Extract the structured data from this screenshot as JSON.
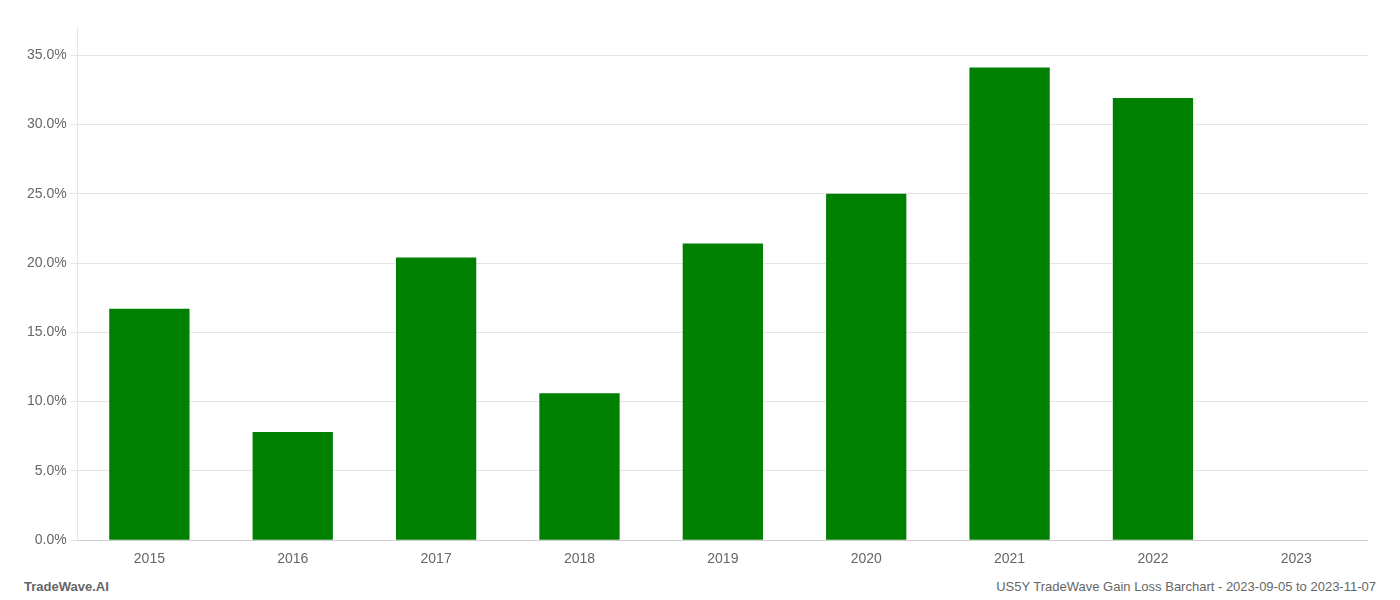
{
  "chart_data": {
    "type": "bar",
    "categories": [
      "2015",
      "2016",
      "2017",
      "2018",
      "2019",
      "2020",
      "2021",
      "2022",
      "2023"
    ],
    "values": [
      0.167,
      0.078,
      0.204,
      0.106,
      0.214,
      0.25,
      0.341,
      0.319,
      null
    ],
    "color": "#008000",
    "ylim": [
      0,
      0.37
    ],
    "yticks": [
      {
        "value": 0.0,
        "label": "0.0%"
      },
      {
        "value": 0.05,
        "label": "5.0%"
      },
      {
        "value": 0.1,
        "label": "10.0%"
      },
      {
        "value": 0.15,
        "label": "15.0%"
      },
      {
        "value": 0.2,
        "label": "20.0%"
      },
      {
        "value": 0.25,
        "label": "25.0%"
      },
      {
        "value": 0.3,
        "label": "30.0%"
      },
      {
        "value": 0.35,
        "label": "35.0%"
      }
    ],
    "grid": true,
    "annotations": [
      "TradeWave.AI",
      "US5Y TradeWave Gain Loss Barchart - 2023-09-05 to 2023-11-07"
    ]
  }
}
